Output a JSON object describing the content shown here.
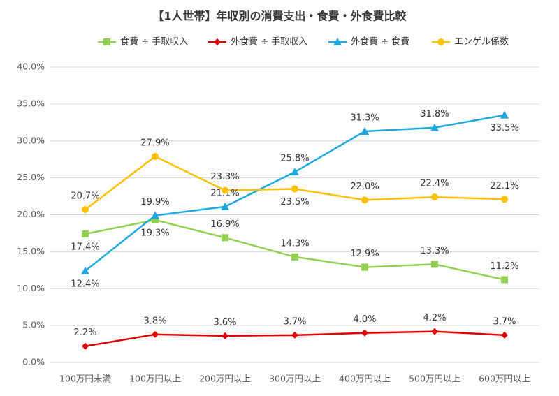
{
  "chart_data": {
    "type": "line",
    "title": "【1人世帯】年収別の消費支出・食費・外食費比較",
    "categories": [
      "100万円未満",
      "100万円以上",
      "200万円以上",
      "300万円以上",
      "400万円以上",
      "500万円以上",
      "600万円以上"
    ],
    "series": [
      {
        "name": "食費 ÷ 手取収入",
        "color": "#92d050",
        "marker": "square",
        "values": [
          17.4,
          19.3,
          16.9,
          14.3,
          12.9,
          13.3,
          11.2
        ],
        "value_labels": [
          "17.4%",
          "19.3%",
          "16.9%",
          "14.3%",
          "12.9%",
          "13.3%",
          "11.2%"
        ]
      },
      {
        "name": "外食費 ÷ 手取収入",
        "color": "#e00000",
        "marker": "diamond",
        "values": [
          2.2,
          3.8,
          3.6,
          3.7,
          4.0,
          4.2,
          3.7
        ],
        "value_labels": [
          "2.2%",
          "3.8%",
          "3.6%",
          "3.7%",
          "4.0%",
          "4.2%",
          "3.7%"
        ]
      },
      {
        "name": "外食費 ÷ 食費",
        "color": "#1fa8e0",
        "marker": "triangle",
        "values": [
          12.4,
          19.9,
          21.1,
          25.8,
          31.3,
          31.8,
          33.5
        ],
        "value_labels": [
          "12.4%",
          "19.9%",
          "21.1%",
          "25.8%",
          "31.3%",
          "31.8%",
          "33.5%"
        ]
      },
      {
        "name": "エンゲル係数",
        "color": "#ffc000",
        "marker": "circle",
        "values": [
          20.7,
          27.9,
          23.3,
          23.5,
          22.0,
          22.4,
          22.1
        ],
        "value_labels": [
          "20.7%",
          "27.9%",
          "23.3%",
          "23.5%",
          "22.0%",
          "22.4%",
          "22.1%"
        ]
      }
    ],
    "ylim": [
      0,
      40
    ],
    "yticks": [
      {
        "value": 0,
        "label": "0.0%"
      },
      {
        "value": 5,
        "label": "5.0%"
      },
      {
        "value": 10,
        "label": "10.0%"
      },
      {
        "value": 15,
        "label": "15.0%"
      },
      {
        "value": 20,
        "label": "20.0%"
      },
      {
        "value": 25,
        "label": "25.0%"
      },
      {
        "value": 30,
        "label": "30.0%"
      },
      {
        "value": 35,
        "label": "35.0%"
      },
      {
        "value": 40,
        "label": "40.0%"
      }
    ],
    "grid": true,
    "legend": "top"
  }
}
